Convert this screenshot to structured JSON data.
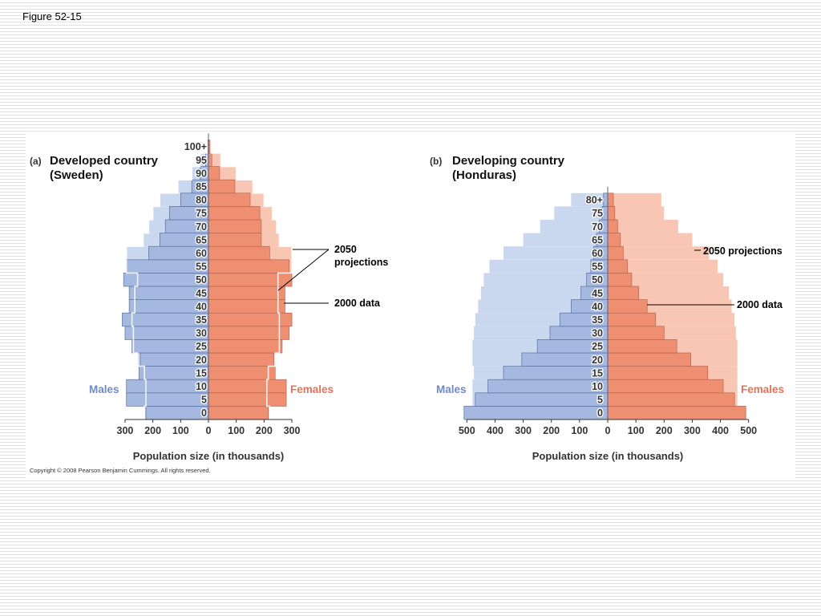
{
  "figure_label": "Figure 52-15",
  "copyright": "Copyright © 2008 Pearson Benjamin Cummings. All rights reserved.",
  "colors": {
    "male_2000": "#a5b8e0",
    "male_2050": "#cad8ef",
    "female_2000": "#ef8f71",
    "female_2050": "#f8c6b3",
    "bar_outline": "#5b6f9f",
    "female_outline": "#b86450",
    "male_label": "#6e8bc6",
    "female_label": "#e5735a"
  },
  "chart_data": [
    {
      "type": "bar",
      "panel_tag": "(a)",
      "title_lines": [
        "Developed country",
        "(Sweden)"
      ],
      "xlabel": "Population size (in thousands)",
      "x_ticks": [
        "300",
        "200",
        "100",
        "0",
        "100",
        "200",
        "300"
      ],
      "xlim": [
        -300,
        300
      ],
      "male_label": "Males",
      "female_label": "Females",
      "annotations": {
        "projections_lines": [
          "2050",
          "projections"
        ],
        "data_label": "2000 data"
      },
      "categories": [
        "0",
        "5",
        "10",
        "15",
        "20",
        "25",
        "30",
        "35",
        "40",
        "45",
        "50",
        "55",
        "60",
        "65",
        "70",
        "75",
        "80",
        "85",
        "90",
        "95",
        "100+"
      ],
      "series": [
        {
          "name": "Males",
          "year": "2000",
          "values": [
            225,
            295,
            295,
            250,
            245,
            275,
            300,
            310,
            285,
            285,
            305,
            295,
            215,
            175,
            155,
            140,
            100,
            60,
            30,
            10,
            2
          ]
        },
        {
          "name": "Females",
          "year": "2000",
          "values": [
            215,
            280,
            280,
            240,
            235,
            265,
            290,
            300,
            275,
            275,
            300,
            290,
            220,
            190,
            190,
            185,
            150,
            95,
            40,
            12,
            4
          ]
        },
        {
          "name": "Males",
          "year": "2050",
          "values": [
            230,
            225,
            225,
            230,
            255,
            270,
            270,
            275,
            265,
            265,
            255,
            295,
            295,
            235,
            215,
            200,
            175,
            110,
            60,
            30,
            5
          ]
        },
        {
          "name": "Females",
          "year": "2050",
          "values": [
            220,
            210,
            210,
            215,
            240,
            255,
            255,
            255,
            250,
            250,
            250,
            300,
            300,
            255,
            245,
            230,
            200,
            160,
            100,
            45,
            10
          ]
        }
      ]
    },
    {
      "type": "bar",
      "panel_tag": "(b)",
      "title_lines": [
        "Developing country",
        "(Honduras)"
      ],
      "xlabel": "Population size (in thousands)",
      "x_ticks": [
        "500",
        "400",
        "300",
        "200",
        "100",
        "0",
        "100",
        "200",
        "300",
        "400",
        "500"
      ],
      "xlim": [
        -500,
        500
      ],
      "male_label": "Males",
      "female_label": "Females",
      "annotations": {
        "projections_label": "2050 projections",
        "data_label": "2000 data"
      },
      "categories": [
        "0",
        "5",
        "10",
        "15",
        "20",
        "25",
        "30",
        "35",
        "40",
        "45",
        "50",
        "55",
        "60",
        "65",
        "70",
        "75",
        "80+"
      ],
      "series": [
        {
          "name": "Males",
          "year": "2000",
          "values": [
            510,
            470,
            425,
            370,
            305,
            250,
            205,
            170,
            130,
            95,
            75,
            60,
            50,
            40,
            30,
            20,
            15
          ]
        },
        {
          "name": "Females",
          "year": "2000",
          "values": [
            490,
            450,
            410,
            355,
            295,
            245,
            200,
            170,
            140,
            110,
            85,
            70,
            55,
            45,
            35,
            25,
            20
          ]
        },
        {
          "name": "Males",
          "year": "2050",
          "values": [
            465,
            480,
            480,
            475,
            480,
            480,
            475,
            470,
            460,
            450,
            440,
            420,
            370,
            300,
            240,
            190,
            130
          ]
        },
        {
          "name": "Females",
          "year": "2050",
          "values": [
            445,
            460,
            460,
            460,
            460,
            460,
            455,
            450,
            440,
            430,
            410,
            390,
            360,
            300,
            250,
            200,
            190
          ]
        }
      ]
    }
  ]
}
